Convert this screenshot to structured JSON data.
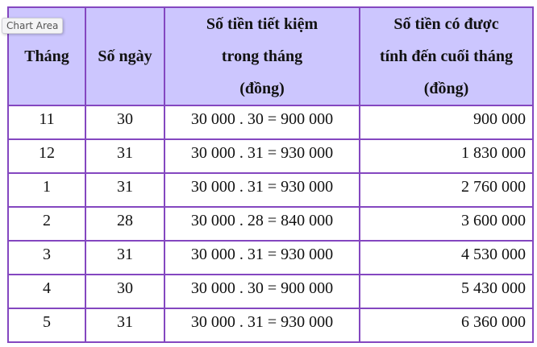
{
  "tooltip": "Chart Area",
  "headers": [
    "Tháng",
    "Số ngày",
    "Số tiền tiết kiệm trong tháng (đồng)",
    "Số tiền có được tính đến cuối tháng (đồng)"
  ],
  "header_lines": {
    "col3": [
      "Số tiền tiết kiệm",
      "trong tháng",
      "(đồng)"
    ],
    "col4": [
      "Số tiền có được",
      "tính đến cuối tháng",
      "(đồng)"
    ]
  },
  "rows": [
    [
      "11",
      "30",
      "30 000 . 30 = 900 000",
      "900 000"
    ],
    [
      "12",
      "31",
      "30 000 . 31 = 930 000",
      "1 830 000"
    ],
    [
      "1",
      "31",
      "30 000 . 31 = 930 000",
      "2 760 000"
    ],
    [
      "2",
      "28",
      "30 000 . 28 = 840 000",
      "3 600 000"
    ],
    [
      "3",
      "31",
      "30 000 . 31 = 930 000",
      "4 530 000"
    ],
    [
      "4",
      "30",
      "30 000 . 30 = 900 000",
      "5 430 000"
    ],
    [
      "5",
      "31",
      "30 000 . 31 = 930 000",
      "6 360 000"
    ]
  ],
  "colors": {
    "border": "#8447c0",
    "header_bg": "#ccc6fe"
  }
}
